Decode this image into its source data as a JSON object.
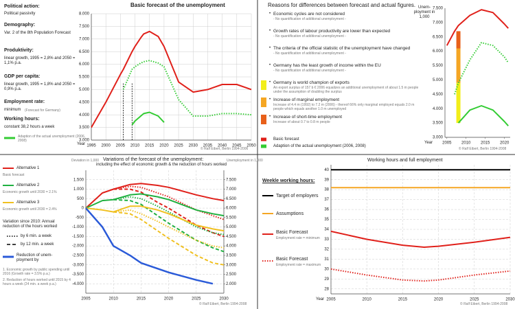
{
  "chart_data": [
    {
      "type": "line",
      "title": "Basic forecast of the unemployment",
      "annotations": [
        "Political action:",
        "Political passivity",
        "Demography:",
        "Var. 2 of the 8th Population Forecast",
        "Produktivity:",
        "linear growth, 1995 = 2,8% and 2050 = 1,1% p.a.",
        "GDP per capita:",
        "linear growth, 1995 = 1,8% and 2050 = 0,9% p.a.",
        "Employment rate:",
        "minimum",
        "(Forecast for Germany)",
        "Working hours:",
        "constant 38,2 hours a week"
      ],
      "source": "© Ralf Eibert, Berlin 1994-2006",
      "x_label": "Year",
      "x": [
        1995,
        2000,
        2005,
        2006,
        2009,
        2010,
        2012,
        2013,
        2015,
        2018,
        2020,
        2025,
        2030,
        2035,
        2040,
        2045,
        2050
      ],
      "xlim": [
        1995,
        2050
      ],
      "xticks": [
        1995,
        2000,
        2005,
        2010,
        2015,
        2020,
        2025,
        2030,
        2035,
        2040,
        2045,
        2050
      ],
      "ylim": [
        3000,
        8000
      ],
      "yticks": [
        {
          "value": 3000,
          "label": "3.000"
        },
        {
          "value": 3500,
          "label": "3.500"
        },
        {
          "value": 4000,
          "label": "4.000"
        },
        {
          "value": 4500,
          "label": "4.500"
        },
        {
          "value": 5000,
          "label": "5.000"
        },
        {
          "value": 5500,
          "label": "5.500"
        },
        {
          "value": 6000,
          "label": "6.000"
        },
        {
          "value": 6500,
          "label": "6.500"
        },
        {
          "value": 7000,
          "label": "7.000"
        },
        {
          "value": 7500,
          "label": "7.500"
        },
        {
          "value": 8000,
          "label": "8.000"
        }
      ],
      "grid": true,
      "reference_lines_x": [
        2006,
        2009
      ],
      "series": [
        {
          "color": "#e0201a",
          "style": "solid",
          "values": [
            3500,
            4500,
            5600,
            5800,
            6500,
            6700,
            7050,
            7200,
            7300,
            7100,
            6700,
            5300,
            4900,
            5000,
            5200,
            5200,
            5000
          ]
        },
        {
          "color": "#33cc33",
          "style": "dotted",
          "values": [
            null,
            null,
            null,
            5000,
            5800,
            5900,
            6050,
            6100,
            6150,
            6050,
            5900,
            4600,
            3950,
            3950,
            4050,
            4050,
            4000
          ]
        },
        {
          "name": "Adaption of the actual unemployment (2006, 2008)",
          "color": "#33cc33",
          "style": "solid",
          "values": [
            null,
            null,
            null,
            null,
            3600,
            3750,
            3950,
            4050,
            4100,
            3950,
            3700,
            null,
            null,
            null,
            null,
            null,
            null
          ]
        }
      ]
    },
    {
      "type": "line",
      "title": "Reasons for differences between forecast and actual figures.",
      "y_label": "Unem-ployment in 1,000",
      "x_label": "Year",
      "source": "© Ralf Eibert, Berlin 1994-2008",
      "reasons": [
        {
          "title": "Economic cycles are not considered",
          "note": "- No quantification of additional unemployment -"
        },
        {
          "title": "Growth rates of labour productivity are lower than expected",
          "note": "- No quantification of additional unemployment -"
        },
        {
          "title": "The criteria of the official statistic of the unemployment have changed",
          "note": "- No quantification of additional unemployment -"
        },
        {
          "title": "Germany has the least growth of income within the EU",
          "note": "- No quantification of additional unemployment -"
        },
        {
          "title": "Germany is world champion of exports",
          "note": "An export surplus of 157 b € 2006 equalizes an additional unemployment of about 1.5 m people under the assumption of doubling the surplus"
        },
        {
          "title": "Increase of marginal employment",
          "note": "Increase of 4.4 m (1992) to 7.2 m (2006) - thereof 66% only marginal employed equals 2.0 m people which equals another 1.0 m unemployed"
        },
        {
          "title": "Increase of short-time employment",
          "note": "Increase of about 0.7 to 0.8 m people"
        }
      ],
      "x": [
        2005,
        2007,
        2008,
        2011,
        2014,
        2017,
        2020,
        2021
      ],
      "xlim": [
        2004.5,
        2021.5
      ],
      "xticks": [
        2005,
        2010,
        2015,
        2020
      ],
      "ylim": [
        3000,
        7500
      ],
      "yticks": [
        {
          "value": 3000,
          "label": "3.000"
        },
        {
          "value": 3500,
          "label": "3.500"
        },
        {
          "value": 4000,
          "label": "4.000"
        },
        {
          "value": 4500,
          "label": "4.500"
        },
        {
          "value": 5000,
          "label": "5.000"
        },
        {
          "value": 5500,
          "label": "5.500"
        },
        {
          "value": 6000,
          "label": "6.000"
        },
        {
          "value": 6500,
          "label": "6.500"
        },
        {
          "value": 7000,
          "label": "7.000"
        },
        {
          "value": 7500,
          "label": "7.500"
        }
      ],
      "grid": false,
      "bars": {
        "x": 2008,
        "segments": [
          {
            "color": "#f2ee1a",
            "value": 1400
          },
          {
            "color": "#f5a623",
            "value": 1200
          },
          {
            "color": "#e8601a",
            "value": 600
          }
        ]
      },
      "series": [
        {
          "name": "Basic forecast",
          "color": "#e0201a",
          "style": "solid",
          "values": [
            6200,
            6700,
            6900,
            7250,
            7450,
            7350,
            6950,
            6800
          ]
        },
        {
          "color": "#33cc33",
          "style": "dotted",
          "values": [
            null,
            4500,
            4900,
            5700,
            6300,
            6200,
            5800,
            5600
          ]
        },
        {
          "name": "Adaption of the actual unemployment (2006, 2008)",
          "color": "#33cc33",
          "style": "solid",
          "values": [
            null,
            null,
            3500,
            3950,
            4100,
            3950,
            3550,
            3400
          ]
        }
      ]
    },
    {
      "type": "line",
      "title": "Variations of the forecast of the unemployment:",
      "subtitle": "including the effect of economic growth & the reduction of hours worked",
      "y_label": "Deviation in 1,000",
      "y2_label": "Unemployment in 1,000",
      "source": "© Ralf Eibert, Berlin 1994-2008",
      "variation_title": "Variation since 2010: Annual reduction of the hours worked",
      "variation_styles": [
        {
          "style": "dotted",
          "label": "by 6 min. a week"
        },
        {
          "style": "dashed",
          "label": "by 12 min. a week"
        }
      ],
      "notes": [
        "1. Economic growth by public spending until 2016 (Growth rate = 3.5% p.a.)",
        "2. Reduction of hours worked until 2015 by 4 hours a week (24 min. a week p.a.)"
      ],
      "x": [
        2005,
        2008,
        2010,
        2013,
        2015,
        2018,
        2020,
        2025,
        2028,
        2030
      ],
      "xlim": [
        2005,
        2030
      ],
      "xticks": [
        2005,
        2010,
        2015,
        2020,
        2025,
        2030
      ],
      "ylim": [
        -4500,
        2000
      ],
      "yticks": [
        {
          "value": 1500,
          "label": "1.500"
        },
        {
          "value": 1000,
          "label": "1.000"
        },
        500,
        0,
        -500,
        {
          "value": -1000,
          "label": "-1.000"
        },
        {
          "value": -1500,
          "label": "-1.500"
        },
        {
          "value": -2000,
          "label": "-2.000"
        },
        {
          "value": -2500,
          "label": "-2.500"
        },
        {
          "value": -3000,
          "label": "-3.000"
        },
        {
          "value": -3500,
          "label": "-3.500"
        },
        {
          "value": -4000,
          "label": "-4.000"
        }
      ],
      "y2lim": [
        1500,
        8000
      ],
      "y2ticks": [
        {
          "value": 7500,
          "label": "7.500"
        },
        {
          "value": 7000,
          "label": "7.000"
        },
        {
          "value": 6500,
          "label": "6.500"
        },
        {
          "value": 6000,
          "label": "6.000"
        },
        {
          "value": 5500,
          "label": "5.500"
        },
        {
          "value": 5000,
          "label": "5.000"
        },
        {
          "value": 4500,
          "label": "4.500"
        },
        {
          "value": 4000,
          "label": "4.000"
        },
        {
          "value": 3500,
          "label": "3.500"
        },
        {
          "value": 3000,
          "label": "3.000"
        },
        {
          "value": 2500,
          "label": "2.500"
        },
        {
          "value": 2000,
          "label": "2.000"
        }
      ],
      "grid": true,
      "series": [
        {
          "name": "Alternative 1",
          "sublabel": "Basic forecast",
          "color": "#e0201a",
          "style": "solid",
          "values": [
            0,
            800,
            1000,
            1250,
            1300,
            1200,
            1100,
            700,
            500,
            400
          ]
        },
        {
          "color": "#e0201a",
          "style": "dotted",
          "values": [
            null,
            null,
            1000,
            1150,
            1100,
            800,
            600,
            -100,
            -400,
            -600
          ]
        },
        {
          "color": "#e0201a",
          "style": "dashed",
          "values": [
            null,
            null,
            1000,
            1000,
            850,
            300,
            0,
            -900,
            -1300,
            -1500
          ]
        },
        {
          "name": "Alternative 2",
          "sublabel": "Economic growth until 2030 = 2.1%",
          "color": "#1fb040",
          "style": "solid",
          "values": [
            0,
            400,
            450,
            700,
            750,
            600,
            450,
            -100,
            -300,
            -400
          ]
        },
        {
          "color": "#1fb040",
          "style": "dotted",
          "values": [
            null,
            null,
            450,
            600,
            500,
            100,
            -200,
            -1000,
            -1300,
            -1400
          ]
        },
        {
          "color": "#1fb040",
          "style": "dashed",
          "values": [
            null,
            null,
            450,
            400,
            200,
            -400,
            -800,
            -1700,
            -2100,
            -2300
          ]
        },
        {
          "name": "Alternative 3",
          "sublabel": "Economic growth until 2030 = 2.4%",
          "color": "#f0c020",
          "style": "solid",
          "values": [
            0,
            -100,
            -200,
            100,
            100,
            -100,
            -300,
            -900,
            -1100,
            -1200
          ]
        },
        {
          "color": "#f0c020",
          "style": "dotted",
          "values": [
            null,
            null,
            -200,
            -100,
            -300,
            -700,
            -1000,
            -1700,
            -2000,
            -2100
          ]
        },
        {
          "color": "#f0c020",
          "style": "dashed",
          "values": [
            null,
            null,
            -200,
            -300,
            -600,
            -1200,
            -1600,
            -2500,
            -2900,
            -3000
          ]
        },
        {
          "name": "Reduction of unem-ployment by",
          "color": "#2a5ad8",
          "style": "solid",
          "values": [
            0,
            -1000,
            -2000,
            -2500,
            -2900,
            -3200,
            -3400,
            -3800,
            -4000,
            null
          ]
        }
      ]
    },
    {
      "type": "line",
      "title": "Working hours and full employment",
      "legend_title": "Weekle working hours:",
      "x_label": "Year",
      "source": "© Ralf Eibert, Berlin 1994-2008",
      "x": [
        2005,
        2010,
        2015,
        2018,
        2020,
        2025,
        2030
      ],
      "xlim": [
        2005,
        2030
      ],
      "xticks": [
        2005,
        2010,
        2015,
        2020,
        2025,
        2030
      ],
      "ylim": [
        27.5,
        40.5
      ],
      "yticks": [
        28,
        29,
        30,
        31,
        32,
        33,
        34,
        35,
        36,
        37,
        38,
        39,
        40
      ],
      "grid": true,
      "series": [
        {
          "name": "Target of employers",
          "color": "#000000",
          "style": "solid",
          "values": [
            40,
            40,
            40,
            40,
            40,
            40,
            40
          ]
        },
        {
          "name": "Assumptions",
          "color": "#f5a623",
          "style": "solid",
          "values": [
            38.2,
            38.2,
            38.2,
            38.2,
            38.2,
            38.2,
            38.2
          ]
        },
        {
          "name": "Basic Forecast",
          "sublabel": "Employment rate = minimum",
          "color": "#e0201a",
          "style": "solid",
          "values": [
            33.8,
            33.0,
            32.4,
            32.2,
            32.3,
            32.7,
            33.2
          ]
        },
        {
          "name": "Basic Forecast",
          "sublabel": "Employment rate = maximum",
          "color": "#e0201a",
          "style": "dotted",
          "values": [
            30.0,
            29.4,
            28.9,
            28.8,
            28.9,
            29.4,
            29.8
          ]
        }
      ]
    }
  ]
}
